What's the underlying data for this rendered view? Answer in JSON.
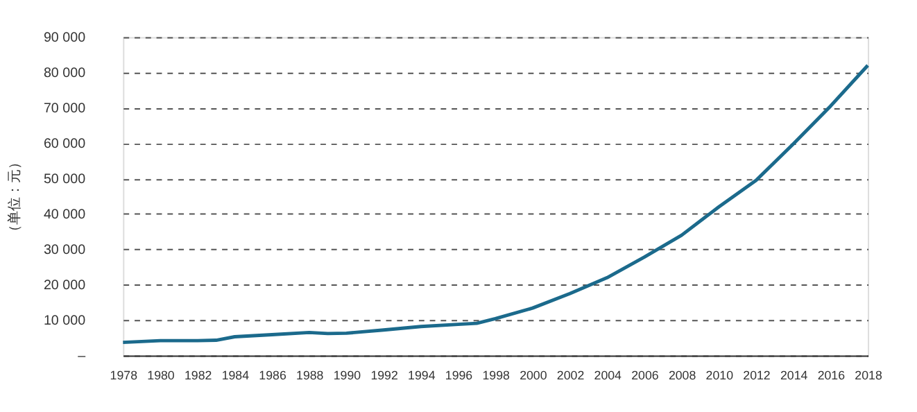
{
  "chart_data": {
    "type": "line",
    "ylabel": "（单位：元）",
    "x": [
      1978,
      1980,
      1982,
      1983,
      1984,
      1986,
      1988,
      1989,
      1990,
      1992,
      1994,
      1996,
      1997,
      1998,
      2000,
      2002,
      2004,
      2006,
      2008,
      2010,
      2012,
      2014,
      2016,
      2018
    ],
    "series": [
      {
        "color": "#1b6a8c",
        "values": [
          3700,
          4200,
          4200,
          4300,
          5300,
          5900,
          6500,
          6200,
          6300,
          7200,
          8200,
          8800,
          9100,
          10400,
          13400,
          17500,
          22000,
          27800,
          34000,
          42000,
          49500,
          59800,
          70500,
          82000
        ]
      }
    ],
    "xlim": [
      1978,
      2018
    ],
    "xticks": [
      1978,
      1980,
      1982,
      1984,
      1986,
      1988,
      1990,
      1992,
      1994,
      1996,
      1998,
      2000,
      2002,
      2004,
      2006,
      2008,
      2010,
      2012,
      2014,
      2016,
      2018
    ],
    "ylim": [
      0,
      90000
    ],
    "yticks": [
      {
        "value": 0,
        "label": "–"
      },
      {
        "value": 10000,
        "label": "10 000"
      },
      {
        "value": 20000,
        "label": "20 000"
      },
      {
        "value": 30000,
        "label": "30 000"
      },
      {
        "value": 40000,
        "label": "40 000"
      },
      {
        "value": 50000,
        "label": "50 000"
      },
      {
        "value": 60000,
        "label": "60 000"
      },
      {
        "value": 70000,
        "label": "70 000"
      },
      {
        "value": 80000,
        "label": "80 000"
      },
      {
        "value": 90000,
        "label": "90 000"
      }
    ],
    "grid": "y",
    "marker": "none",
    "line_style": "solid"
  }
}
